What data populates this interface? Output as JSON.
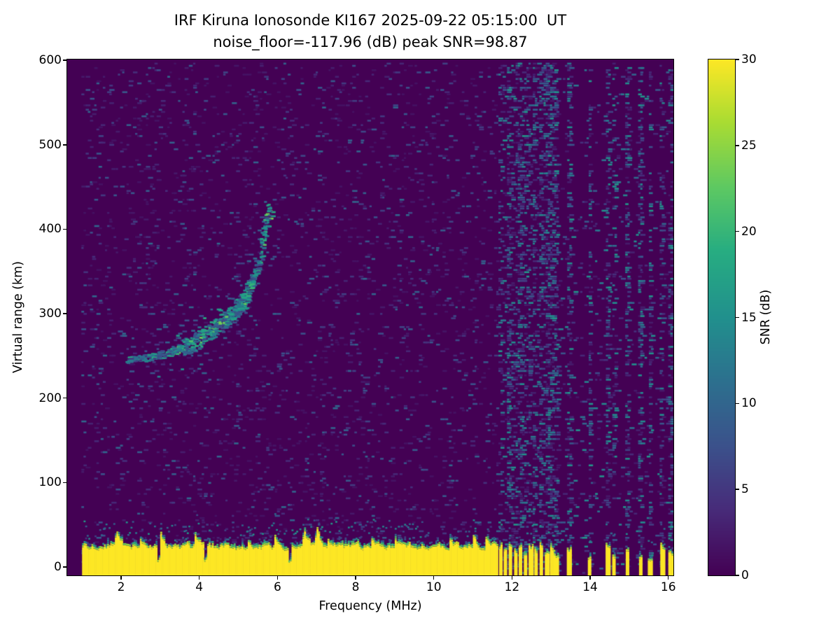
{
  "chart_data": {
    "type": "heatmap",
    "title": "IRF Kiruna Ionosonde KI167 2025-09-22 05:15:00  UT",
    "subtitle": "noise_floor=-117.96 (dB) peak SNR=98.87",
    "xlabel": "Frequency (MHz)",
    "ylabel": "Virtual range (km)",
    "xlim": [
      0.62,
      16.13
    ],
    "ylim": [
      -10,
      601
    ],
    "x_ticks": [
      2,
      4,
      6,
      8,
      10,
      12,
      14,
      16
    ],
    "y_ticks": [
      0,
      100,
      200,
      300,
      400,
      500,
      600
    ],
    "grid": false,
    "colorbar": {
      "label": "SNR (dB)",
      "min": 0,
      "max": 30,
      "ticks": [
        0,
        5,
        10,
        15,
        20,
        25,
        30
      ],
      "colormap": "viridis",
      "low_color": "#440154",
      "high_color": "#fde725"
    },
    "data_freq_range_mhz": [
      1.0,
      16.1
    ],
    "background_snr_db": 0,
    "ground_clutter": {
      "description": "saturated near-range return band",
      "snr_db": 30,
      "range_km_base_top": 22,
      "freq_solid_until_mhz": 11.62,
      "notches_mhz": [
        2.95,
        4.15,
        6.3
      ]
    },
    "echo_trace": {
      "description": "F-region ionospheric echo trace (frequency MHz, virtual range km)",
      "snr_db_range": [
        8,
        24
      ],
      "points": [
        [
          2.15,
          246
        ],
        [
          2.5,
          248
        ],
        [
          2.9,
          251
        ],
        [
          3.3,
          256
        ],
        [
          3.7,
          263
        ],
        [
          4.1,
          274
        ],
        [
          4.5,
          288
        ],
        [
          4.9,
          304
        ],
        [
          5.15,
          320
        ],
        [
          5.35,
          342
        ],
        [
          5.5,
          365
        ],
        [
          5.62,
          392
        ],
        [
          5.72,
          412
        ],
        [
          5.8,
          430
        ]
      ]
    },
    "rfi_band_mhz": [
      11.62,
      13.15
    ],
    "rfi_strips": [
      [
        11.7,
        24
      ],
      [
        11.82,
        20
      ],
      [
        11.95,
        27
      ],
      [
        12.08,
        18
      ],
      [
        12.2,
        25
      ],
      [
        12.33,
        16
      ],
      [
        12.47,
        23
      ],
      [
        12.6,
        19
      ],
      [
        12.74,
        26
      ],
      [
        12.88,
        15
      ],
      [
        13.02,
        21
      ],
      [
        13.12,
        12
      ],
      [
        13.45,
        19
      ],
      [
        13.98,
        9
      ],
      [
        14.44,
        23
      ],
      [
        14.6,
        11
      ],
      [
        14.95,
        17
      ],
      [
        15.28,
        11
      ],
      [
        15.52,
        7
      ],
      [
        15.84,
        23
      ],
      [
        16.04,
        16
      ]
    ]
  }
}
